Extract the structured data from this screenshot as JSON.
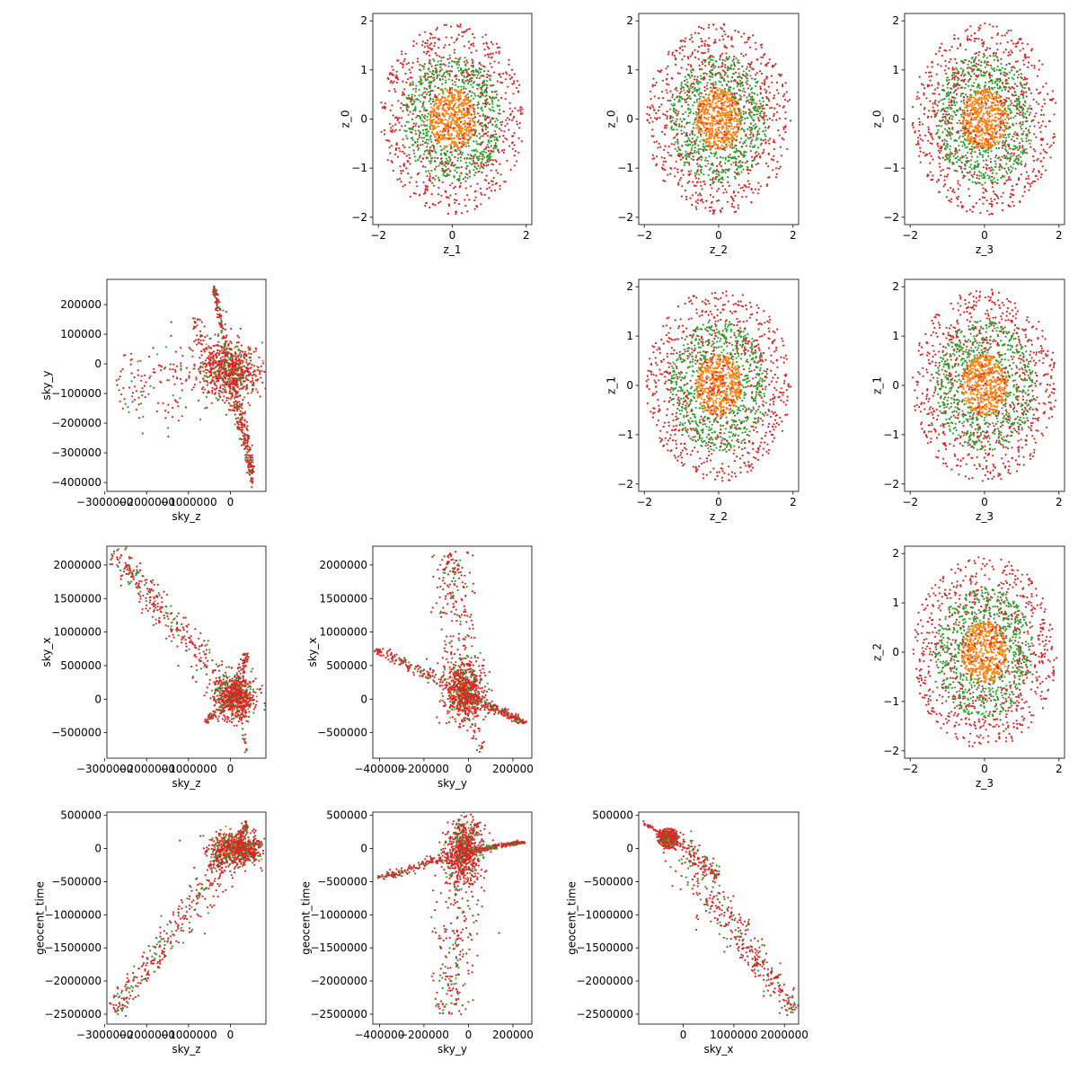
{
  "figure": {
    "colors": {
      "outer": "#d62728",
      "middle": "#2ca02c",
      "inner": "#ff7f0e"
    }
  },
  "chart_data": [
    {
      "type": "scatter",
      "xlabel": "z_1",
      "ylabel": "z_0",
      "xlim": [
        -2.15,
        2.15
      ],
      "ylim": [
        -2.15,
        2.15
      ],
      "xticks": [
        -2,
        0,
        2
      ],
      "xtick_labels": [
        "−2",
        "0",
        "2"
      ],
      "yticks": [
        -2,
        -1,
        0,
        1,
        2
      ],
      "ytick_labels": [
        "−2",
        "−1",
        "0",
        "1",
        "2"
      ],
      "cloud": {
        "kind": "disk",
        "cx": 0,
        "cy": 0,
        "rx": 1.95,
        "ry": 1.95,
        "seed": 11
      },
      "grid": false
    },
    {
      "type": "scatter",
      "xlabel": "z_2",
      "ylabel": "z_0",
      "xlim": [
        -2.15,
        2.15
      ],
      "ylim": [
        -2.15,
        2.15
      ],
      "xticks": [
        -2,
        0,
        2
      ],
      "xtick_labels": [
        "−2",
        "0",
        "2"
      ],
      "yticks": [
        -2,
        -1,
        0,
        1,
        2
      ],
      "ytick_labels": [
        "−2",
        "−1",
        "0",
        "1",
        "2"
      ],
      "cloud": {
        "kind": "disk",
        "cx": 0,
        "cy": 0,
        "rx": 1.95,
        "ry": 1.95,
        "seed": 12
      },
      "grid": false
    },
    {
      "type": "scatter",
      "xlabel": "z_3",
      "ylabel": "z_0",
      "xlim": [
        -2.15,
        2.15
      ],
      "ylim": [
        -2.15,
        2.15
      ],
      "xticks": [
        -2,
        0,
        2
      ],
      "xtick_labels": [
        "−2",
        "0",
        "2"
      ],
      "yticks": [
        -2,
        -1,
        0,
        1,
        2
      ],
      "ytick_labels": [
        "−2",
        "−1",
        "0",
        "1",
        "2"
      ],
      "cloud": {
        "kind": "disk",
        "cx": 0,
        "cy": 0,
        "rx": 1.95,
        "ry": 1.95,
        "seed": 13
      },
      "grid": false
    },
    {
      "type": "scatter",
      "xlabel": "sky_z",
      "ylabel": "sky_y",
      "xlim": [
        -2950000,
        850000
      ],
      "ylim": [
        -430000,
        285000
      ],
      "xticks": [
        -3000000,
        -2000000,
        -1000000,
        0
      ],
      "xtick_labels": [
        "−3000000",
        "−2000000",
        "−1000000",
        "0"
      ],
      "yticks": [
        -400000,
        -300000,
        -200000,
        -100000,
        0,
        100000,
        200000
      ],
      "ytick_labels": [
        "−400000",
        "−300000",
        "−200000",
        "−100000",
        "0",
        "100000",
        "200000"
      ],
      "cloud": {
        "kind": "hub",
        "hub": [
          0,
          -20000
        ],
        "spread": [
          350000,
          45000
        ],
        "arms": [
          {
            "to": [
              -2750000,
              -90000
            ],
            "width": 30000,
            "count": 160
          },
          {
            "to": [
              -400000,
              260000
            ],
            "width": 25000,
            "count": 120
          },
          {
            "to": [
              550000,
              -380000
            ],
            "width": 40000,
            "count": 260
          },
          {
            "to": [
              -900000,
              130000
            ],
            "width": 30000,
            "count": 60
          }
        ],
        "seed": 21
      },
      "grid": false
    },
    {
      "type": "scatter",
      "xlabel": "z_2",
      "ylabel": "z_1",
      "xlim": [
        -2.15,
        2.15
      ],
      "ylim": [
        -2.15,
        2.15
      ],
      "xticks": [
        -2,
        0,
        2
      ],
      "xtick_labels": [
        "−2",
        "0",
        "2"
      ],
      "yticks": [
        -2,
        -1,
        0,
        1,
        2
      ],
      "ytick_labels": [
        "−2",
        "−1",
        "0",
        "1",
        "2"
      ],
      "cloud": {
        "kind": "disk",
        "cx": 0,
        "cy": 0,
        "rx": 1.95,
        "ry": 1.95,
        "seed": 14
      },
      "grid": false
    },
    {
      "type": "scatter",
      "xlabel": "z_3",
      "ylabel": "z_1",
      "xlim": [
        -2.15,
        2.15
      ],
      "ylim": [
        -2.15,
        2.15
      ],
      "xticks": [
        -2,
        0,
        2
      ],
      "xtick_labels": [
        "−2",
        "0",
        "2"
      ],
      "yticks": [
        -2,
        -1,
        0,
        1,
        2
      ],
      "ytick_labels": [
        "−2",
        "−1",
        "0",
        "1",
        "2"
      ],
      "cloud": {
        "kind": "disk",
        "cx": 0,
        "cy": 0,
        "rx": 1.95,
        "ry": 1.95,
        "seed": 15
      },
      "grid": false
    },
    {
      "type": "scatter",
      "xlabel": "sky_z",
      "ylabel": "sky_x",
      "xlim": [
        -2950000,
        850000
      ],
      "ylim": [
        -880000,
        2280000
      ],
      "xticks": [
        -3000000,
        -2000000,
        -1000000,
        0
      ],
      "xtick_labels": [
        "−3000000",
        "−2000000",
        "−1000000",
        "0"
      ],
      "yticks": [
        -500000,
        0,
        500000,
        1000000,
        1500000,
        2000000
      ],
      "ytick_labels": [
        "−500000",
        "0",
        "500000",
        "1000000",
        "1500000",
        "2000000"
      ],
      "cloud": {
        "kind": "hub",
        "hub": [
          100000,
          50000
        ],
        "spread": [
          250000,
          150000
        ],
        "arms": [
          {
            "to": [
              -2800000,
              2200000
            ],
            "width": 45000,
            "count": 320
          },
          {
            "to": [
              -600000,
              -350000
            ],
            "width": 30000,
            "count": 70
          },
          {
            "to": [
              400000,
              700000
            ],
            "width": 60000,
            "count": 70
          },
          {
            "to": [
              400000,
              -800000
            ],
            "width": 30000,
            "count": 30
          }
        ],
        "seed": 22
      },
      "grid": false
    },
    {
      "type": "scatter",
      "xlabel": "sky_y",
      "ylabel": "sky_x",
      "xlim": [
        -430000,
        285000
      ],
      "ylim": [
        -880000,
        2280000
      ],
      "xticks": [
        -400000,
        -200000,
        0,
        200000
      ],
      "xtick_labels": [
        "−400000",
        "−200000",
        "0",
        "200000"
      ],
      "yticks": [
        -500000,
        0,
        500000,
        1000000,
        1500000,
        2000000
      ],
      "ytick_labels": [
        "−500000",
        "0",
        "500000",
        "1000000",
        "1500000",
        "2000000"
      ],
      "cloud": {
        "kind": "hub",
        "hub": [
          -20000,
          100000
        ],
        "spread": [
          40000,
          200000
        ],
        "arms": [
          {
            "to": [
              -420000,
              750000
            ],
            "width": 25000,
            "count": 150
          },
          {
            "to": [
              -80000,
              2200000
            ],
            "width": 25000,
            "count": 220
          },
          {
            "to": [
              250000,
              -360000
            ],
            "width": 25000,
            "count": 220
          },
          {
            "to": [
              60000,
              -800000
            ],
            "width": 15000,
            "count": 40
          }
        ],
        "seed": 23
      },
      "grid": false
    },
    {
      "type": "scatter",
      "xlabel": "z_3",
      "ylabel": "z_2",
      "xlim": [
        -2.15,
        2.15
      ],
      "ylim": [
        -2.15,
        2.15
      ],
      "xticks": [
        -2,
        0,
        2
      ],
      "xtick_labels": [
        "−2",
        "0",
        "2"
      ],
      "yticks": [
        -2,
        -1,
        0,
        1,
        2
      ],
      "ytick_labels": [
        "−2",
        "−1",
        "0",
        "1",
        "2"
      ],
      "cloud": {
        "kind": "disk",
        "cx": 0,
        "cy": 0,
        "rx": 1.95,
        "ry": 1.95,
        "seed": 16
      },
      "grid": false
    },
    {
      "type": "scatter",
      "xlabel": "sky_z",
      "ylabel": "geocent_time",
      "xlim": [
        -2950000,
        850000
      ],
      "ylim": [
        -2650000,
        550000
      ],
      "xticks": [
        -3000000,
        -2000000,
        -1000000,
        0
      ],
      "xtick_labels": [
        "−3000000",
        "−2000000",
        "−1000000",
        "0"
      ],
      "yticks": [
        -2500000,
        -2000000,
        -1500000,
        -1000000,
        -500000,
        0,
        500000
      ],
      "ytick_labels": [
        "−2500000",
        "−2000000",
        "−1500000",
        "−1000000",
        "−500000",
        "0",
        "500000"
      ],
      "cloud": {
        "kind": "hub",
        "hub": [
          150000,
          0
        ],
        "spread": [
          300000,
          120000
        ],
        "arms": [
          {
            "to": [
              -2800000,
              -2450000
            ],
            "width": 45000,
            "count": 320
          },
          {
            "to": [
              400000,
              400000
            ],
            "width": 40000,
            "count": 60
          },
          {
            "to": [
              600000,
              -100000
            ],
            "width": 50000,
            "count": 60
          },
          {
            "to": [
              -500000,
              -300000
            ],
            "width": 80000,
            "count": 60
          }
        ],
        "seed": 24
      },
      "grid": false
    },
    {
      "type": "scatter",
      "xlabel": "sky_y",
      "ylabel": "geocent_time",
      "xlim": [
        -430000,
        285000
      ],
      "ylim": [
        -2650000,
        550000
      ],
      "xticks": [
        -400000,
        -200000,
        0,
        200000
      ],
      "xtick_labels": [
        "−400000",
        "−200000",
        "0",
        "200000"
      ],
      "yticks": [
        -2500000,
        -2000000,
        -1500000,
        -1000000,
        -500000,
        0,
        500000
      ],
      "ytick_labels": [
        "−2500000",
        "−2000000",
        "−1500000",
        "−1000000",
        "−500000",
        "0",
        "500000"
      ],
      "cloud": {
        "kind": "hub",
        "hub": [
          -20000,
          -50000
        ],
        "spread": [
          40000,
          250000
        ],
        "arms": [
          {
            "to": [
              -400000,
              -450000
            ],
            "width": 30000,
            "count": 160
          },
          {
            "to": [
              -90000,
              -2500000
            ],
            "width": 25000,
            "count": 220
          },
          {
            "to": [
              250000,
              100000
            ],
            "width": 25000,
            "count": 220
          },
          {
            "to": [
              50000,
              400000
            ],
            "width": 20000,
            "count": 30
          }
        ],
        "seed": 25
      },
      "grid": false
    },
    {
      "type": "scatter",
      "xlabel": "sky_x",
      "ylabel": "geocent_time",
      "xlim": [
        -880000,
        2280000
      ],
      "ylim": [
        -2650000,
        550000
      ],
      "xticks": [
        0,
        1000000,
        2000000
      ],
      "xtick_labels": [
        "0",
        "1000000",
        "2000000"
      ],
      "yticks": [
        -2500000,
        -2000000,
        -1500000,
        -1000000,
        -500000,
        0,
        500000
      ],
      "ytick_labels": [
        "−2500000",
        "−2000000",
        "−1500000",
        "−1000000",
        "−500000",
        "0",
        "500000"
      ],
      "cloud": {
        "kind": "hub",
        "hub": [
          -300000,
          150000
        ],
        "spread": [
          80000,
          60000
        ],
        "arms": [
          {
            "to": [
              2200000,
              -2450000
            ],
            "width": 45000,
            "count": 360
          },
          {
            "to": [
              -800000,
              400000
            ],
            "width": 25000,
            "count": 40
          },
          {
            "to": [
              700000,
              -400000
            ],
            "width": 60000,
            "count": 120
          }
        ],
        "seed": 26
      },
      "grid": false
    }
  ]
}
